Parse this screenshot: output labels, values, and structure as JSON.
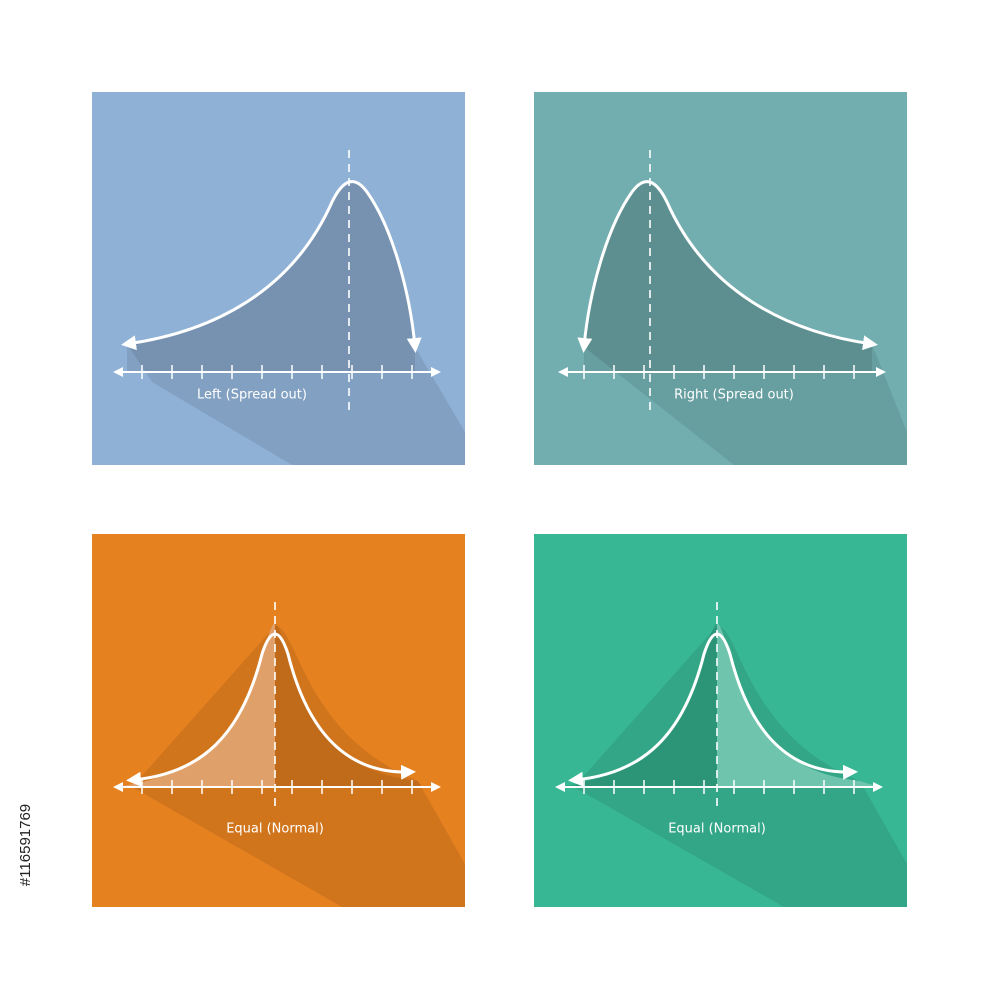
{
  "panels": [
    {
      "label": "Left (Spread out)"
    },
    {
      "label": "Right (Spread out)"
    },
    {
      "label": "Equal (Normal)"
    },
    {
      "label": "Equal (Normal)"
    }
  ],
  "stock_id": "#116591769"
}
